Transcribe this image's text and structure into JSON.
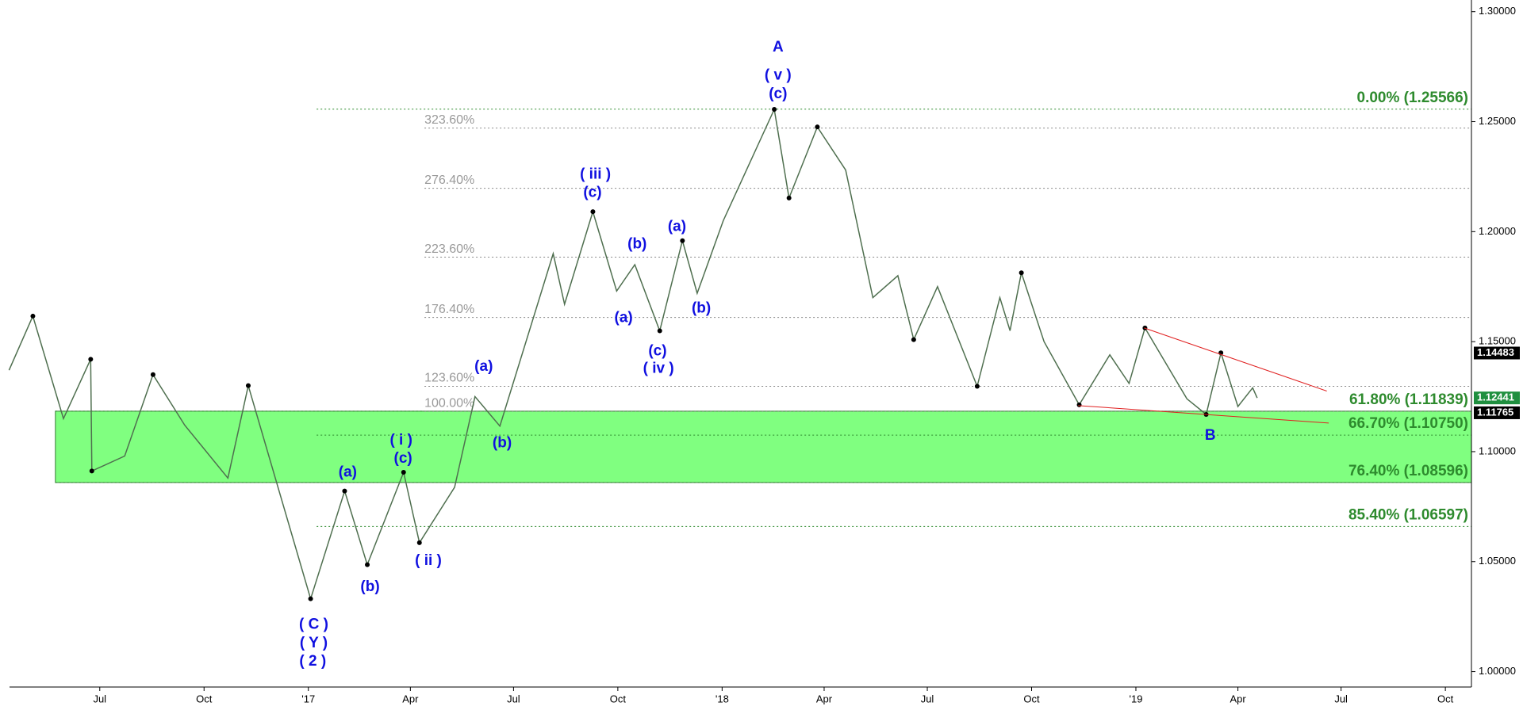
{
  "chart_data": {
    "type": "line",
    "color": "#4f6f4f",
    "x": [
      "2016-04-12",
      "2016-05-03",
      "2016-05-30",
      "2016-06-23",
      "2016-06-24",
      "2016-07-23",
      "2016-08-17",
      "2016-09-14",
      "2016-10-22",
      "2016-11-09",
      "2017-01-03",
      "2017-02-02",
      "2017-02-22",
      "2017-03-26",
      "2017-04-09",
      "2017-05-10",
      "2017-05-28",
      "2017-06-19",
      "2017-08-05",
      "2017-08-15",
      "2017-09-09",
      "2017-09-30",
      "2017-10-16",
      "2017-11-07",
      "2017-11-27",
      "2017-12-10",
      "2018-01-02",
      "2018-02-16",
      "2018-03-01",
      "2018-03-26",
      "2018-04-20",
      "2018-05-14",
      "2018-06-05",
      "2018-06-19",
      "2018-07-10",
      "2018-08-14",
      "2018-09-03",
      "2018-09-12",
      "2018-09-22",
      "2018-10-12",
      "2018-11-12",
      "2018-12-09",
      "2018-12-26",
      "2019-01-09",
      "2019-02-15",
      "2019-03-04",
      "2019-03-17",
      "2019-04-01",
      "2019-04-14",
      "2019-04-18"
    ],
    "values": [
      1.137,
      1.1616,
      1.115,
      1.142,
      1.0912,
      1.098,
      1.135,
      1.112,
      1.088,
      1.13,
      1.0331,
      1.0821,
      1.0486,
      1.0906,
      1.0586,
      1.0838,
      1.125,
      1.1116,
      1.19,
      1.167,
      1.2091,
      1.173,
      1.185,
      1.1549,
      1.1959,
      1.172,
      1.205,
      1.2556,
      1.2153,
      1.2476,
      1.228,
      1.17,
      1.18,
      1.1509,
      1.175,
      1.1297,
      1.17,
      1.155,
      1.1813,
      1.15,
      1.1213,
      1.144,
      1.131,
      1.1562,
      1.124,
      1.1169,
      1.1449,
      1.1205,
      1.129,
      1.12441
    ],
    "xlim": [
      "2016-04-04",
      "2019-10-24"
    ],
    "xticks": [
      {
        "value": "2016-07-01",
        "label": "Jul"
      },
      {
        "value": "2016-10-01",
        "label": "Oct"
      },
      {
        "value": "2017-01-01",
        "label": "'17"
      },
      {
        "value": "2017-04-01",
        "label": "Apr"
      },
      {
        "value": "2017-07-01",
        "label": "Jul"
      },
      {
        "value": "2017-10-01",
        "label": "Oct"
      },
      {
        "value": "2018-01-01",
        "label": "'18"
      },
      {
        "value": "2018-04-01",
        "label": "Apr"
      },
      {
        "value": "2018-07-01",
        "label": "Jul"
      },
      {
        "value": "2018-10-01",
        "label": "Oct"
      },
      {
        "value": "2019-01-01",
        "label": "'19"
      },
      {
        "value": "2019-04-01",
        "label": "Apr"
      },
      {
        "value": "2019-07-01",
        "label": "Jul"
      },
      {
        "value": "2019-10-01",
        "label": "Oct"
      }
    ],
    "ylim": [
      0.993,
      1.3053
    ],
    "yticks": [
      {
        "value": 1.0,
        "label": "1.00000"
      },
      {
        "value": 1.05,
        "label": "1.05000"
      },
      {
        "value": 1.1,
        "label": "1.10000"
      },
      {
        "value": 1.15,
        "label": "1.15000"
      },
      {
        "value": 1.2,
        "label": "1.20000"
      },
      {
        "value": 1.25,
        "label": "1.25000"
      },
      {
        "value": 1.3,
        "label": "1.30000"
      }
    ],
    "fib_levels": [
      {
        "value": 1.25566,
        "label": "0.00% (1.25566)"
      },
      {
        "value": 1.11839,
        "label": "61.80% (1.11839)"
      },
      {
        "value": 1.1075,
        "label": "66.70% (1.10750)"
      },
      {
        "value": 1.08596,
        "label": "76.40% (1.08596)"
      },
      {
        "value": 1.06597,
        "label": "85.40% (1.06597)"
      }
    ],
    "extensions": [
      {
        "value": 1.2471,
        "label": "323.60%"
      },
      {
        "value": 1.2197,
        "label": "276.40%"
      },
      {
        "value": 1.1884,
        "label": "223.60%"
      },
      {
        "value": 1.161,
        "label": "176.40%"
      },
      {
        "value": 1.1297,
        "label": "123.60%"
      },
      {
        "value": 1.1183,
        "label": "100.00%"
      }
    ],
    "price_tags": [
      {
        "value": 1.14483,
        "label": "1.14483",
        "color": "#000000"
      },
      {
        "value": 1.12441,
        "label": "1.12441",
        "color": "#1f8f3f"
      },
      {
        "value": 1.11765,
        "label": "1.11765",
        "color": "#000000"
      }
    ],
    "wave_labels": [
      "A",
      "( v )",
      "(c)",
      "( iii )",
      "(c)",
      "(b)",
      "(a)",
      "(a)",
      "(b)",
      "(c)",
      "( iv )",
      "(a)",
      "(b)",
      "( i )",
      "(c)",
      "(a)",
      "(b)",
      "( ii )",
      "( C )",
      "( Y )",
      "( 2 )",
      "B"
    ]
  }
}
